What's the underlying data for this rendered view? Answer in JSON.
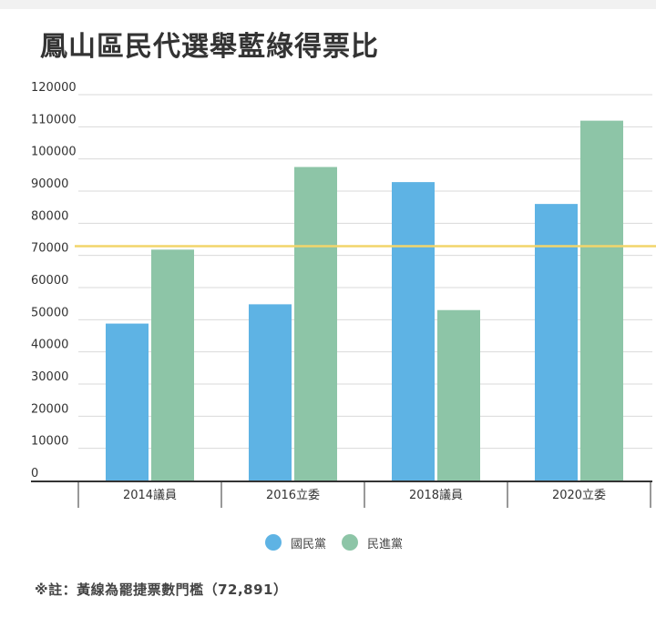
{
  "title": "鳳山區民代選舉藍綠得票比",
  "footnote": "※註：黃線為罷捷票數門檻（72,891）",
  "colors": {
    "kmt": "#5eb3e4",
    "dpp": "#8dc5a7",
    "threshold": "#f2d56b",
    "grid": "#d9d9d9",
    "axis": "#333333"
  },
  "chart_data": {
    "type": "bar",
    "categories": [
      "2014議員",
      "2016立委",
      "2018議員",
      "2020立委"
    ],
    "series": [
      {
        "name": "國民黨",
        "values": [
          48800,
          54800,
          92800,
          86000
        ]
      },
      {
        "name": "民進黨",
        "values": [
          71800,
          97500,
          53000,
          111900
        ]
      }
    ],
    "ylim": [
      0,
      120000
    ],
    "yticks": [
      0,
      10000,
      20000,
      30000,
      40000,
      50000,
      60000,
      70000,
      80000,
      90000,
      100000,
      110000,
      120000
    ],
    "reference_line": {
      "value": 72891
    },
    "grid": true,
    "legend": "bottom-center"
  }
}
